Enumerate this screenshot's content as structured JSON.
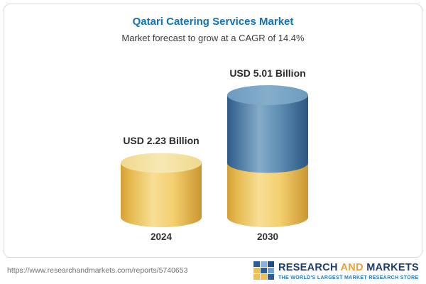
{
  "header": {
    "title": "Qatari Catering Services Market",
    "subtitle": "Market forecast to grow at a CAGR of 14.4%"
  },
  "chart_data": {
    "type": "bar",
    "subtype": "3d-cylinder",
    "title": "Qatari Catering Services Market",
    "subtitle": "Market forecast to grow at a CAGR of 14.4%",
    "cagr_percent": 14.4,
    "categories": [
      "2024",
      "2030"
    ],
    "values": [
      2.23,
      5.01
    ],
    "value_labels": [
      "USD 2.23 Billion",
      "USD 5.01 Billion"
    ],
    "unit": "USD Billion",
    "ylim": [
      0,
      5.01
    ],
    "grid": "off",
    "legend": "none",
    "colors": {
      "base_segment": "#F3CF6F",
      "growth_segment": "#4C7EA8",
      "title_accent": "#1272b6"
    },
    "notes": "2030 cylinder is stacked: gold lower segment equals the 2024 value (2.23), blue upper segment is the growth to 5.01"
  },
  "footer": {
    "url": "https://www.researchandmarkets.com/reports/5740653",
    "brand": {
      "word1": "RESEARCH",
      "word2": "AND",
      "word3": "MARKETS",
      "tagline": "THE WORLD'S LARGEST MARKET RESEARCH STORE",
      "squares": [
        "#2a5f98",
        "#89b4d9",
        "#1c4f86",
        "#f2c04e",
        "#2a5f98",
        "#6fa3cd",
        "#f2c04e",
        "#f2c04e",
        "#2a5f98"
      ]
    }
  }
}
